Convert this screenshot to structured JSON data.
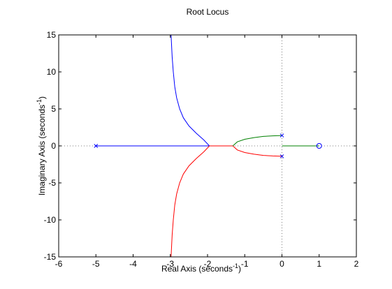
{
  "chart_data": {
    "type": "line",
    "title": "Root Locus",
    "xlabel": "Real Axis (seconds",
    "xlabel_sup": "-1",
    "xlabel_end": ")",
    "ylabel": "Imaginary Axis (seconds",
    "ylabel_sup": "-1",
    "ylabel_end": ")",
    "xlim": [
      -6,
      2
    ],
    "ylim": [
      -15,
      15
    ],
    "xticks": [
      -6,
      -5,
      -4,
      -3,
      -2,
      -1,
      0,
      1,
      2
    ],
    "yticks": [
      -15,
      -10,
      -5,
      0,
      5,
      10,
      15
    ],
    "grid": false,
    "legend": "none",
    "reference_lines": [
      {
        "orientation": "vertical",
        "value": 0,
        "style": "dotted",
        "color": "#808080"
      },
      {
        "orientation": "horizontal",
        "value": 0,
        "style": "dotted",
        "color": "#808080"
      }
    ],
    "series": [
      {
        "color": "#0000ff",
        "points": [
          [
            -5,
            0
          ],
          [
            -1.95,
            0
          ],
          [
            -2.1,
            0.8
          ],
          [
            -2.3,
            1.7
          ],
          [
            -2.5,
            2.7
          ],
          [
            -2.65,
            3.8
          ],
          [
            -2.75,
            5.0
          ],
          [
            -2.83,
            6.5
          ],
          [
            -2.88,
            8.0
          ],
          [
            -2.92,
            10.0
          ],
          [
            -2.95,
            12.0
          ],
          [
            -2.98,
            15.0
          ]
        ]
      },
      {
        "color": "#ff0000",
        "points": [
          [
            -1.32,
            0
          ],
          [
            -1.95,
            0
          ],
          [
            -2.1,
            -0.8
          ],
          [
            -2.3,
            -1.7
          ],
          [
            -2.5,
            -2.7
          ],
          [
            -2.65,
            -3.8
          ],
          [
            -2.75,
            -5.0
          ],
          [
            -2.83,
            -6.5
          ],
          [
            -2.88,
            -8.0
          ],
          [
            -2.92,
            -10.0
          ],
          [
            -2.95,
            -12.0
          ],
          [
            -2.98,
            -15.0
          ]
        ]
      },
      {
        "color": "#ff0000",
        "points": [
          [
            0,
            -1.41
          ],
          [
            -0.25,
            -1.36
          ],
          [
            -0.5,
            -1.28
          ],
          [
            -0.75,
            -1.12
          ],
          [
            -1.0,
            -0.9
          ],
          [
            -1.2,
            -0.55
          ],
          [
            -1.32,
            0
          ]
        ]
      },
      {
        "color": "#008000",
        "points": [
          [
            0,
            1.41
          ],
          [
            -0.25,
            1.36
          ],
          [
            -0.5,
            1.28
          ],
          [
            -0.75,
            1.12
          ],
          [
            -1.0,
            0.9
          ],
          [
            -1.2,
            0.55
          ],
          [
            -1.32,
            0
          ]
        ]
      },
      {
        "color": "#008000",
        "points": [
          [
            0,
            0
          ],
          [
            1,
            0
          ]
        ]
      }
    ],
    "poles": [
      [
        -5,
        0
      ],
      [
        0,
        1.41
      ],
      [
        0,
        -1.41
      ]
    ],
    "zeros": [
      [
        1,
        0
      ]
    ],
    "marker_color": "#0000ff"
  }
}
